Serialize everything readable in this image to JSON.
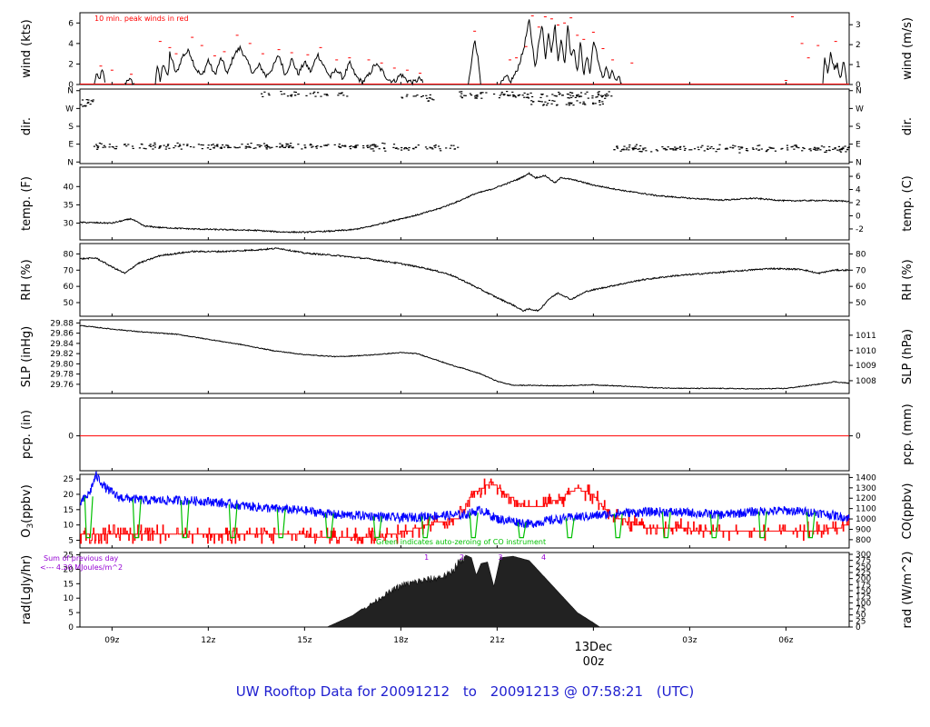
{
  "page": {
    "title_parts": [
      "UW Rooftop Data for 20091212",
      "to",
      "20091213 @ 07:58:21",
      "(UTC)"
    ]
  },
  "colors": {
    "black": "#000000",
    "red": "#ff0000",
    "blue": "#0000ff",
    "green": "#00c000",
    "purple": "#9400d3",
    "title_blue": "#2020d0"
  },
  "time_axis": {
    "ticks": [
      {
        "h": 9,
        "label": "09z"
      },
      {
        "h": 12,
        "label": "12z"
      },
      {
        "h": 15,
        "label": "15z"
      },
      {
        "h": 18,
        "label": "18z"
      },
      {
        "h": 21,
        "label": "21z"
      },
      {
        "h": 24,
        "label": "00z"
      },
      {
        "h": 27,
        "label": "03z"
      },
      {
        "h": 30,
        "label": "06z"
      }
    ],
    "date_marker": {
      "h": 24,
      "date": "13Dec",
      "time": "00z"
    },
    "range_hours": [
      8.0,
      31.97
    ]
  },
  "chart_data": [
    {
      "type": "line",
      "name": "wind",
      "ylabel_left": "wind (kts)",
      "ylabel_right": "wind (m/s)",
      "ylim": [
        0,
        7
      ],
      "left_ticks": [
        0,
        2,
        4,
        6
      ],
      "right_ticks": [
        0,
        1,
        2,
        3
      ],
      "annotation": "10 min. peak winds in red",
      "segments": [
        {
          "h": [
            8.45,
            8.5,
            8.6,
            8.7,
            8.8
          ],
          "v": [
            0,
            1,
            0.5,
            1.4,
            0
          ]
        },
        {
          "h": [
            9.4,
            9.5,
            9.6,
            9.7
          ],
          "v": [
            0,
            0.6,
            0.3,
            0
          ]
        },
        {
          "h": [
            10.35,
            10.4,
            10.5,
            10.6,
            10.75,
            10.8,
            11.0,
            11.2,
            11.4,
            11.6,
            11.8,
            12.0,
            12.2,
            12.4,
            12.6,
            12.8,
            13.0,
            13.2,
            13.4,
            13.6,
            13.8,
            14.0,
            14.2,
            14.4,
            14.6,
            14.8,
            15.0,
            15.2,
            15.4,
            15.6,
            15.8,
            16.0,
            16.2,
            16.4,
            16.6,
            16.8,
            17.0,
            17.2,
            17.4,
            17.6,
            17.8,
            18.0,
            18.2,
            18.4,
            18.6,
            18.7
          ],
          "v": [
            0,
            2.0,
            0.3,
            2.2,
            0.6,
            3.1,
            1.0,
            2.8,
            3.3,
            1.6,
            0.8,
            2.4,
            0.9,
            2.6,
            1.0,
            2.9,
            3.6,
            2.3,
            1.1,
            1.9,
            0.8,
            1.6,
            2.9,
            0.9,
            2.5,
            1.0,
            2.2,
            1.2,
            3.0,
            1.8,
            0.7,
            1.5,
            0.6,
            2.1,
            0.8,
            0.2,
            0.9,
            2.0,
            1.4,
            0.5,
            0.3,
            1.0,
            0.4,
            0.2,
            0.6,
            0
          ]
        },
        {
          "h": [
            20.1,
            20.2,
            20.3,
            20.4,
            20.5
          ],
          "v": [
            0,
            2.0,
            4.6,
            2.6,
            0
          ]
        },
        {
          "h": [
            21.1,
            21.3,
            21.4,
            21.6,
            21.8,
            22.0,
            22.1,
            22.2,
            22.3,
            22.4,
            22.5,
            22.6,
            22.7,
            22.8,
            22.9,
            23.0,
            23.1,
            23.2,
            23.3,
            23.4,
            23.5,
            23.6,
            23.7,
            23.8,
            23.9,
            24.0,
            24.1,
            24.2,
            24.3,
            24.4,
            24.5,
            24.6,
            24.7,
            24.8,
            24.9
          ],
          "v": [
            0,
            0.8,
            0.2,
            1.2,
            3.1,
            6.2,
            3.8,
            1.6,
            4.1,
            6.1,
            2.4,
            5.2,
            3.0,
            6.0,
            2.2,
            4.8,
            1.6,
            5.9,
            2.8,
            3.6,
            1.2,
            4.2,
            0.9,
            2.7,
            1.1,
            4.3,
            3.2,
            1.4,
            0.6,
            1.8,
            0.5,
            1.3,
            0.3,
            0.6,
            0
          ]
        },
        {
          "h": [
            31.15,
            31.2,
            31.3,
            31.4,
            31.5,
            31.6,
            31.7,
            31.8,
            31.9
          ],
          "v": [
            0,
            2.8,
            1.2,
            3.2,
            1.5,
            1.9,
            0.6,
            2.4,
            0
          ]
        }
      ],
      "gust_markers": [
        {
          "h": 8.65,
          "v": 1.8
        },
        {
          "h": 9.0,
          "v": 1.4
        },
        {
          "h": 9.6,
          "v": 1.0
        },
        {
          "h": 10.5,
          "v": 4.2
        },
        {
          "h": 10.8,
          "v": 3.6
        },
        {
          "h": 11.0,
          "v": 3.0
        },
        {
          "h": 11.5,
          "v": 4.6
        },
        {
          "h": 11.8,
          "v": 3.8
        },
        {
          "h": 12.2,
          "v": 2.8
        },
        {
          "h": 12.5,
          "v": 3.2
        },
        {
          "h": 12.9,
          "v": 4.8
        },
        {
          "h": 13.3,
          "v": 4.0
        },
        {
          "h": 13.7,
          "v": 3.0
        },
        {
          "h": 14.2,
          "v": 3.4
        },
        {
          "h": 14.6,
          "v": 3.1
        },
        {
          "h": 15.1,
          "v": 2.9
        },
        {
          "h": 15.5,
          "v": 3.6
        },
        {
          "h": 16.0,
          "v": 2.4
        },
        {
          "h": 16.4,
          "v": 2.6
        },
        {
          "h": 17.0,
          "v": 2.4
        },
        {
          "h": 17.4,
          "v": 2.1
        },
        {
          "h": 17.8,
          "v": 1.6
        },
        {
          "h": 18.2,
          "v": 1.4
        },
        {
          "h": 18.6,
          "v": 1.1
        },
        {
          "h": 20.3,
          "v": 5.2
        },
        {
          "h": 21.4,
          "v": 2.4
        },
        {
          "h": 21.6,
          "v": 2.6
        },
        {
          "h": 21.9,
          "v": 3.7
        },
        {
          "h": 22.1,
          "v": 6.7
        },
        {
          "h": 22.3,
          "v": 5.6
        },
        {
          "h": 22.5,
          "v": 6.6
        },
        {
          "h": 22.7,
          "v": 6.4
        },
        {
          "h": 22.9,
          "v": 5.8
        },
        {
          "h": 23.1,
          "v": 6.0
        },
        {
          "h": 23.3,
          "v": 6.5
        },
        {
          "h": 23.5,
          "v": 4.8
        },
        {
          "h": 23.7,
          "v": 4.4
        },
        {
          "h": 24.0,
          "v": 5.1
        },
        {
          "h": 24.3,
          "v": 3.5
        },
        {
          "h": 24.6,
          "v": 2.4
        },
        {
          "h": 25.2,
          "v": 2.1
        },
        {
          "h": 30.0,
          "v": 0.4
        },
        {
          "h": 30.2,
          "v": 6.6
        },
        {
          "h": 30.5,
          "v": 4.0
        },
        {
          "h": 30.7,
          "v": 2.6
        },
        {
          "h": 31.0,
          "v": 3.8
        },
        {
          "h": 31.55,
          "v": 4.2
        }
      ]
    },
    {
      "type": "scatter",
      "name": "dir",
      "ylabel_left": "dir.",
      "ylabel_right": "dir.",
      "ylim": [
        0,
        360
      ],
      "tick_labels": [
        "N",
        "E",
        "S",
        "W",
        "N"
      ],
      "tick_values": [
        0,
        90,
        180,
        270,
        360
      ],
      "clusters": [
        {
          "h0": 8.0,
          "h1": 8.4,
          "center": 305,
          "spread": 35,
          "n": 14
        },
        {
          "h0": 8.4,
          "h1": 17.5,
          "center": 82,
          "spread": 18,
          "n": 190
        },
        {
          "h0": 13.5,
          "h1": 16.4,
          "center": 345,
          "spread": 15,
          "n": 36
        },
        {
          "h0": 17.0,
          "h1": 19.8,
          "center": 75,
          "spread": 18,
          "n": 50
        },
        {
          "h0": 18.0,
          "h1": 19.0,
          "center": 330,
          "spread": 25,
          "n": 18
        },
        {
          "h0": 19.8,
          "h1": 24.6,
          "center": 340,
          "spread": 22,
          "n": 110
        },
        {
          "h0": 22.0,
          "h1": 24.3,
          "center": 300,
          "spread": 18,
          "n": 40
        },
        {
          "h0": 24.6,
          "h1": 32.0,
          "center": 70,
          "spread": 22,
          "n": 170
        }
      ]
    },
    {
      "type": "line",
      "name": "temp",
      "ylabel_left": "temp. (F)",
      "ylabel_right": "temp. (C)",
      "ylim": [
        25.4,
        45.3
      ],
      "left_ticks": [
        30,
        35,
        40
      ],
      "right_ticks": [
        -2,
        0,
        2,
        4,
        6
      ],
      "x": [
        8.0,
        9.0,
        9.6,
        10.0,
        10.5,
        11.5,
        12.5,
        13.5,
        14.2,
        15.0,
        15.8,
        16.5,
        17.0,
        17.8,
        18.5,
        19.2,
        19.8,
        20.3,
        20.8,
        21.3,
        21.7,
        22.0,
        22.2,
        22.5,
        22.8,
        23.0,
        23.5,
        24.0,
        25.0,
        26.0,
        27.0,
        28.0,
        29.0,
        30.0,
        31.0,
        31.97
      ],
      "y": [
        30.2,
        30.0,
        31.2,
        29.2,
        28.8,
        28.4,
        28.2,
        28.0,
        27.6,
        27.5,
        27.8,
        28.2,
        29.0,
        30.8,
        32.2,
        34.0,
        36.0,
        38.0,
        39.2,
        40.8,
        42.2,
        43.6,
        42.4,
        43.0,
        41.0,
        42.5,
        41.6,
        40.4,
        38.8,
        37.5,
        36.8,
        36.3,
        36.8,
        36.1,
        36.2,
        36.0
      ]
    },
    {
      "type": "line",
      "name": "rh",
      "ylabel_left": "RH (%)",
      "ylabel_right": "RH (%)",
      "ylim": [
        41.6,
        86.4
      ],
      "left_ticks": [
        50,
        60,
        70,
        80
      ],
      "right_ticks": [
        50,
        60,
        70,
        80
      ],
      "x": [
        8.0,
        8.5,
        9.0,
        9.4,
        9.8,
        10.5,
        11.5,
        12.5,
        13.5,
        14.2,
        15.0,
        16.0,
        17.0,
        18.0,
        18.8,
        19.5,
        20.0,
        20.5,
        21.0,
        21.5,
        21.8,
        22.0,
        22.3,
        22.6,
        22.9,
        23.3,
        23.8,
        24.5,
        25.5,
        26.5,
        27.5,
        28.5,
        29.5,
        30.5,
        31.0,
        31.5,
        31.97
      ],
      "y": [
        77.0,
        77.5,
        72.0,
        68.0,
        74.0,
        79.0,
        81.5,
        81.5,
        82.5,
        83.5,
        80.5,
        79.0,
        77.0,
        74.0,
        71.0,
        67.5,
        63.0,
        58.0,
        53.0,
        48.5,
        45.0,
        46.0,
        45.0,
        52.0,
        56.0,
        52.0,
        57.0,
        60.0,
        64.0,
        66.5,
        68.0,
        69.5,
        71.0,
        70.5,
        68.0,
        70.0,
        70.0
      ]
    },
    {
      "type": "line",
      "name": "slp",
      "ylabel_left": "SLP (inHg)",
      "ylabel_right": "SLP (hPa)",
      "ylim": [
        29.742,
        29.886
      ],
      "left_ticks": [
        29.76,
        29.78,
        29.8,
        29.82,
        29.84,
        29.86,
        29.88
      ],
      "left_tick_labels": [
        "29.76",
        "29.78",
        "29.80",
        "29.82",
        "29.84",
        "29.86",
        "29.88"
      ],
      "right_ticks": [
        1008,
        1009,
        1010,
        1011
      ],
      "right_ticks_inhg": [
        29.767,
        29.797,
        29.826,
        29.856
      ],
      "x": [
        8.0,
        9.0,
        10.0,
        11.0,
        12.0,
        13.0,
        14.0,
        15.0,
        16.0,
        17.0,
        18.0,
        18.5,
        19.0,
        19.5,
        20.0,
        20.5,
        21.0,
        21.5,
        22.0,
        23.0,
        24.0,
        25.0,
        26.0,
        27.0,
        28.0,
        29.0,
        30.0,
        30.5,
        31.0,
        31.5,
        31.97
      ],
      "y": [
        29.875,
        29.868,
        29.862,
        29.858,
        29.848,
        29.838,
        29.826,
        29.818,
        29.814,
        29.817,
        29.822,
        29.82,
        29.81,
        29.799,
        29.79,
        29.78,
        29.766,
        29.758,
        29.758,
        29.757,
        29.759,
        29.756,
        29.753,
        29.752,
        29.752,
        29.751,
        29.752,
        29.756,
        29.76,
        29.765,
        29.762
      ]
    },
    {
      "type": "line",
      "name": "pcp",
      "ylabel_left": "pcp. (in)",
      "ylabel_right": "pcp. (mm)",
      "left_ticks": [
        0
      ],
      "right_ticks": [
        0
      ],
      "x": [
        8.0,
        31.97
      ],
      "y": [
        0,
        0
      ]
    },
    {
      "type": "line",
      "name": "o3_co",
      "ylabel_left_parts": [
        "O",
        "3",
        "(ppbv)"
      ],
      "ylabel_right": "CO(ppbv)",
      "left_ticks": [
        5,
        10,
        15,
        20,
        25
      ],
      "right_ticks": [
        800,
        900,
        1000,
        1100,
        1200,
        1300,
        1400
      ],
      "o3_ylim": [
        2.5,
        26.5
      ],
      "co_ylim": [
        720,
        1430
      ],
      "annotation": "Green indicates auto-zeroing of CO instrument",
      "o3": {
        "x": [
          8.0,
          10.0,
          12.0,
          14.0,
          16.0,
          17.5,
          18.2,
          19.0,
          19.8,
          20.2,
          20.8,
          21.3,
          21.8,
          22.3,
          23.0,
          23.5,
          24.0,
          24.5,
          25.5,
          27.0,
          29.0,
          31.0,
          31.97
        ],
        "y": [
          6.5,
          7.0,
          6.5,
          7.0,
          6.0,
          6.5,
          8.0,
          10.5,
          12.5,
          20.0,
          24.0,
          20.0,
          16.5,
          15.5,
          19.0,
          22.0,
          19.5,
          13.5,
          9.5,
          8.5,
          7.5,
          8.0,
          10.0
        ]
      },
      "co": {
        "x": [
          8.0,
          8.3,
          8.5,
          8.8,
          9.2,
          10.0,
          11.0,
          12.0,
          13.0,
          14.0,
          15.0,
          16.0,
          17.0,
          18.0,
          19.0,
          20.0,
          20.5,
          21.0,
          21.5,
          22.0,
          22.5,
          23.0,
          23.5,
          24.0,
          25.0,
          26.0,
          27.0,
          28.0,
          29.0,
          30.0,
          31.0,
          31.97
        ],
        "y": [
          1150,
          1250,
          1420,
          1300,
          1210,
          1180,
          1180,
          1170,
          1130,
          1100,
          1080,
          1040,
          1030,
          1010,
          1030,
          1040,
          1090,
          1000,
          980,
          950,
          980,
          1000,
          1020,
          1030,
          1060,
          1070,
          1060,
          1040,
          1070,
          1080,
          1060,
          1010
        ]
      },
      "zero_times": [
        8.2,
        9.7,
        11.2,
        12.7,
        14.2,
        15.7,
        17.2,
        18.7,
        20.2,
        21.7,
        23.2,
        24.7,
        26.2,
        27.7,
        29.2,
        30.7
      ]
    },
    {
      "type": "area",
      "name": "rad",
      "ylabel_left": "rad(Lgly/hr)",
      "ylabel_right": "rad (W/m^2)",
      "ylim": [
        0,
        25.8
      ],
      "left_ticks": [
        0,
        5,
        10,
        15,
        20,
        25
      ],
      "right_ticks": [
        0,
        25,
        50,
        75,
        100,
        125,
        150,
        175,
        200,
        225,
        250,
        275,
        300
      ],
      "right_max_wm2": 300,
      "annotation_lines": [
        "Sum of previous day",
        "<--- 4.20 MJoules/m^2"
      ],
      "hour_marks": [
        {
          "h": 18.8,
          "label": "1"
        },
        {
          "h": 19.9,
          "label": "2"
        },
        {
          "h": 21.1,
          "label": "3"
        },
        {
          "h": 22.45,
          "label": "4"
        }
      ],
      "envelope": {
        "x": [
          15.7,
          16.0,
          16.5,
          17.0,
          17.5,
          18.0,
          18.5,
          19.0,
          19.5,
          19.8,
          20.0,
          20.2,
          20.35,
          20.5,
          20.7,
          20.9,
          21.1,
          21.5,
          22.0,
          22.5,
          23.0,
          23.5,
          24.0,
          24.2
        ],
        "y": [
          0,
          1.5,
          4.0,
          8.0,
          12.0,
          15.5,
          17.0,
          18.0,
          19.5,
          24.0,
          25.0,
          24.0,
          18.0,
          22.0,
          22.5,
          14.0,
          24.0,
          24.5,
          23.0,
          17.0,
          11.0,
          5.0,
          1.5,
          0
        ]
      }
    }
  ]
}
